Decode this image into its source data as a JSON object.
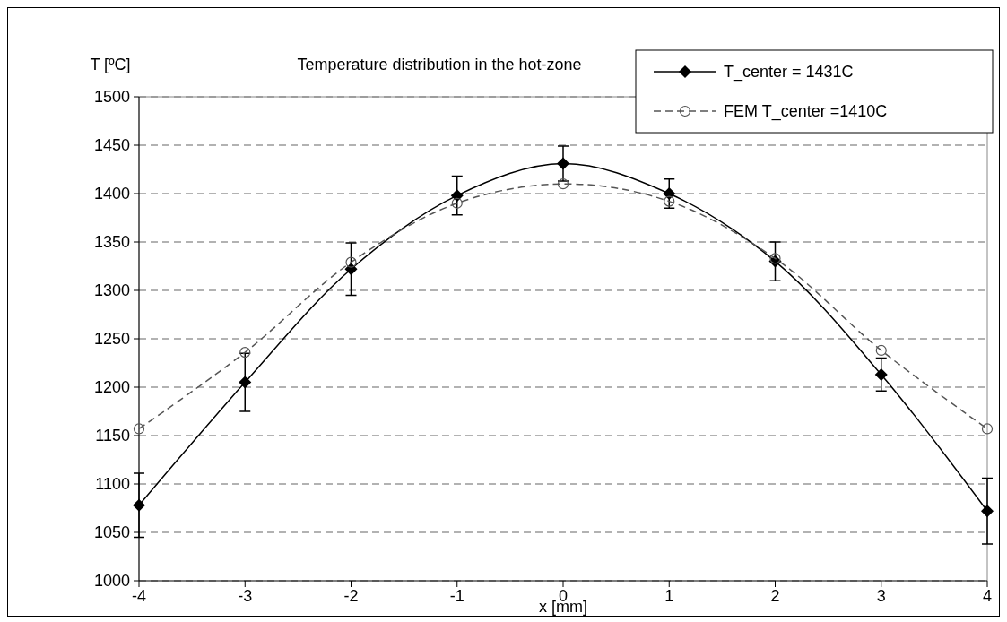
{
  "chart_data": {
    "type": "line",
    "title": "Temperature distribution in the hot-zone",
    "xlabel": "x [mm]",
    "ylabel": "T [ºC]",
    "x": [
      -4,
      -3,
      -2,
      -1,
      0,
      1,
      2,
      3,
      4
    ],
    "series": [
      {
        "name": "T_center = 1431C",
        "color": "#000000",
        "values": [
          1078,
          1205,
          1322,
          1398,
          1431,
          1400,
          1330,
          1213,
          1072
        ],
        "errors": [
          33,
          30,
          27,
          20,
          18,
          15,
          20,
          17,
          34
        ],
        "marker": "diamond",
        "line_style": "solid"
      },
      {
        "name": "FEM T_center =1410C",
        "color": "#555555",
        "values": [
          1157,
          1236,
          1329,
          1390,
          1410,
          1392,
          1333,
          1238,
          1157
        ],
        "marker": "circle",
        "line_style": "dashed"
      }
    ],
    "xlim": [
      -4,
      4
    ],
    "xticks": [
      -4,
      -3,
      -2,
      -1,
      0,
      1,
      2,
      3,
      4
    ],
    "ylim": [
      1000,
      1500
    ],
    "yticks": [
      1000,
      1050,
      1100,
      1150,
      1200,
      1250,
      1300,
      1350,
      1400,
      1450,
      1500
    ],
    "grid": "y",
    "legend": "top right"
  }
}
